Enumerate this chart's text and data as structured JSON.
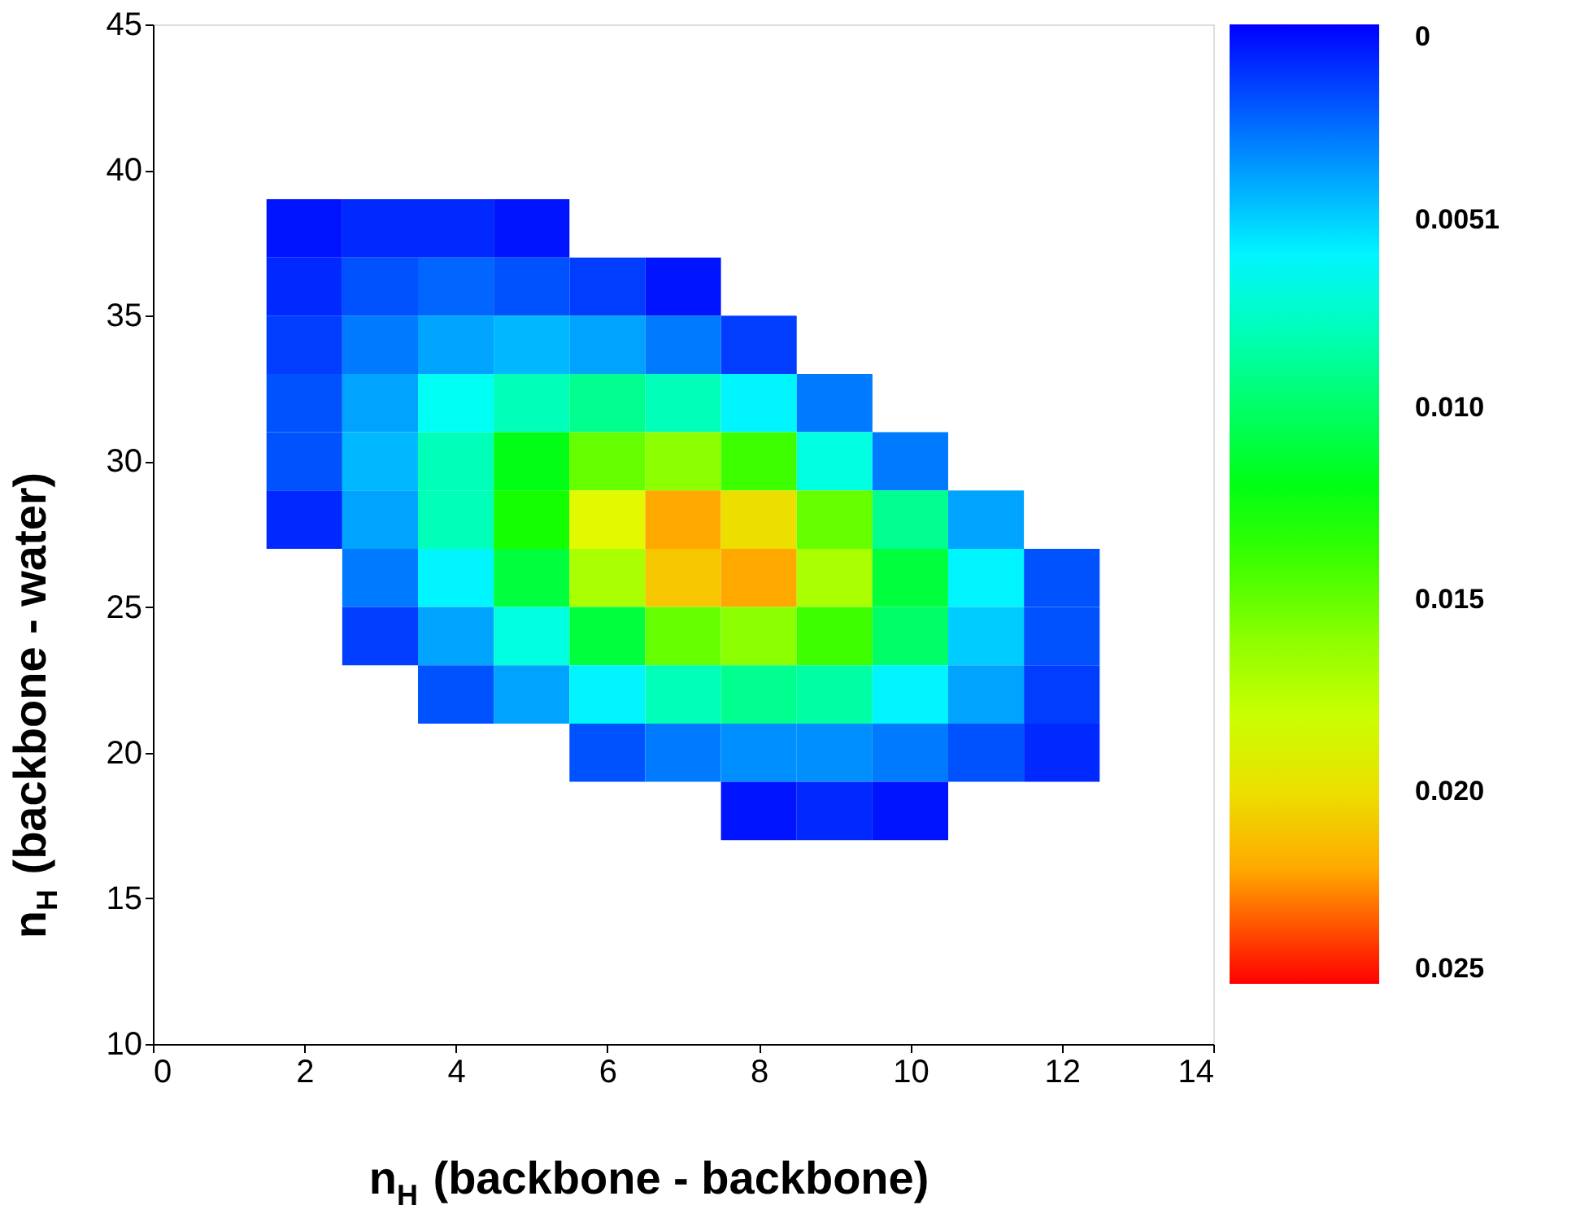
{
  "chart_data": {
    "type": "heatmap",
    "xlabel": "n$_{H}$ (backbone - backbone)",
    "ylabel": "n$_{H}$ (backbone - water)",
    "x": [
      1,
      2,
      3,
      4,
      5,
      6,
      7,
      8,
      9,
      10,
      11,
      12,
      13
    ],
    "y": [
      38,
      36,
      34,
      32,
      30,
      28,
      26,
      24,
      22,
      20,
      18
    ],
    "cells": [
      [
        null,
        0.0005,
        0.001,
        0.001,
        0.0005,
        null,
        null,
        null,
        null,
        null,
        null,
        null,
        null
      ],
      [
        null,
        0.001,
        0.002,
        0.0025,
        0.002,
        0.0015,
        0.0005,
        null,
        null,
        null,
        null,
        null,
        null
      ],
      [
        null,
        0.0015,
        0.003,
        0.004,
        0.0045,
        0.004,
        0.003,
        0.0015,
        null,
        null,
        null,
        null,
        null
      ],
      [
        null,
        0.002,
        0.004,
        0.0065,
        0.008,
        0.009,
        0.008,
        0.006,
        0.003,
        null,
        null,
        null,
        null
      ],
      [
        null,
        0.002,
        0.0045,
        0.008,
        0.012,
        0.015,
        0.016,
        0.014,
        0.007,
        0.003,
        null,
        null,
        null
      ],
      [
        null,
        0.001,
        0.004,
        0.008,
        0.013,
        0.019,
        0.022,
        0.02,
        0.015,
        0.009,
        0.004,
        null,
        null
      ],
      [
        null,
        null,
        0.003,
        0.006,
        0.011,
        0.017,
        0.021,
        0.022,
        0.017,
        0.011,
        0.006,
        0.002,
        null
      ],
      [
        null,
        null,
        0.0015,
        0.004,
        0.007,
        0.011,
        0.015,
        0.016,
        0.014,
        0.01,
        0.005,
        0.002,
        null
      ],
      [
        null,
        null,
        null,
        0.002,
        0.004,
        0.006,
        0.008,
        0.009,
        0.0085,
        0.006,
        0.004,
        0.0015,
        null
      ],
      [
        null,
        null,
        null,
        null,
        null,
        0.002,
        0.003,
        0.0035,
        0.0035,
        0.003,
        0.002,
        0.001,
        null
      ],
      [
        null,
        null,
        null,
        null,
        null,
        null,
        null,
        0.0005,
        0.001,
        0.0005,
        null,
        null,
        null
      ]
    ],
    "xlim": [
      0,
      14
    ],
    "xticks": [
      0,
      2,
      4,
      6,
      8,
      10,
      12,
      14
    ],
    "ylim": [
      10,
      45
    ],
    "yticks": [
      10,
      15,
      20,
      25,
      30,
      35,
      40,
      45
    ],
    "clim": [
      0,
      0.025
    ],
    "cticks": [
      0,
      0.0051,
      {
        "value": 0.01,
        "label": "0.010"
      },
      0.015,
      {
        "value": 0.02,
        "label": "0.020"
      },
      0.025
    ],
    "grid": false
  }
}
